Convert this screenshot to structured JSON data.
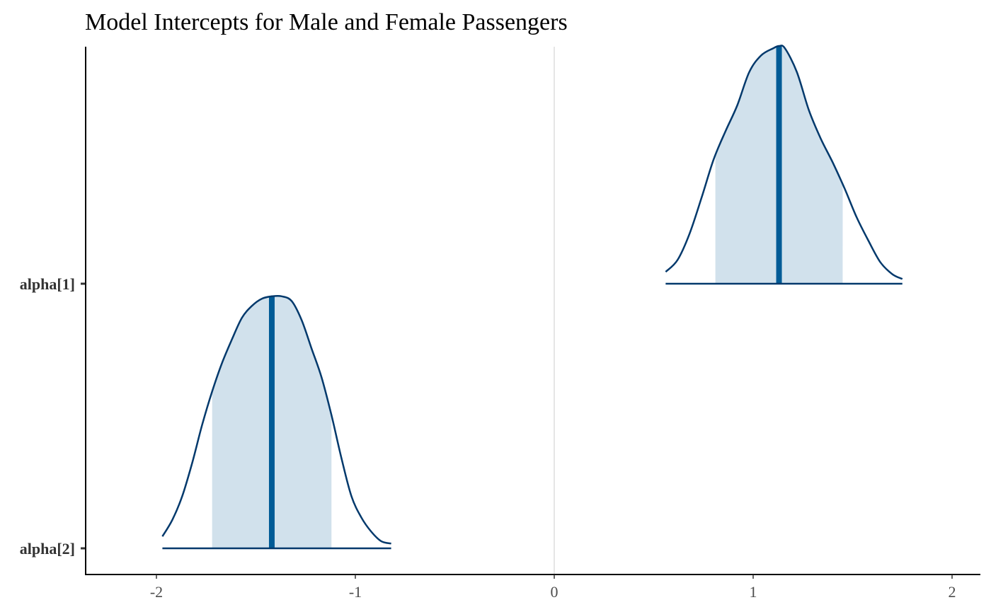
{
  "chart_data": {
    "type": "area",
    "subtype": "ridgeline-density",
    "title": "Model Intercepts for Male and Female Passengers",
    "xlabel": "",
    "ylabel": "",
    "xlim": [
      -2.3,
      2.1
    ],
    "x_ticks": [
      -2,
      -1,
      0,
      1,
      2
    ],
    "x_tick_labels": [
      "-2",
      "-1",
      "0",
      "1",
      "2"
    ],
    "reference_line_x": 0,
    "grid": false,
    "legend": "none",
    "colors": {
      "outline": "#03396c",
      "interval_fill": "#d1e1ec",
      "point_line": "#005b96",
      "reference_line": "#e6e6e6",
      "axis": "#000000"
    },
    "series": [
      {
        "name": "alpha[1]",
        "median": 1.13,
        "interval_low": 0.81,
        "interval_high": 1.45,
        "x_min": 0.56,
        "x_max": 1.75,
        "density_x": [
          0.56,
          0.62,
          0.68,
          0.74,
          0.8,
          0.86,
          0.92,
          0.98,
          1.04,
          1.1,
          1.13,
          1.16,
          1.22,
          1.28,
          1.34,
          1.4,
          1.46,
          1.52,
          1.58,
          1.64,
          1.7,
          1.75
        ],
        "density_y": [
          0.05,
          0.1,
          0.21,
          0.36,
          0.52,
          0.64,
          0.75,
          0.89,
          0.96,
          0.99,
          1.0,
          0.99,
          0.89,
          0.73,
          0.61,
          0.51,
          0.4,
          0.28,
          0.18,
          0.09,
          0.04,
          0.02
        ]
      },
      {
        "name": "alpha[2]",
        "median": -1.42,
        "interval_low": -1.72,
        "interval_high": -1.12,
        "x_min": -1.97,
        "x_max": -0.82,
        "density_x": [
          -1.97,
          -1.92,
          -1.87,
          -1.82,
          -1.77,
          -1.72,
          -1.67,
          -1.62,
          -1.57,
          -1.52,
          -1.47,
          -1.42,
          -1.37,
          -1.32,
          -1.27,
          -1.22,
          -1.17,
          -1.12,
          -1.07,
          -1.02,
          -0.97,
          -0.92,
          -0.87,
          -0.82
        ],
        "density_y": [
          0.05,
          0.12,
          0.22,
          0.36,
          0.52,
          0.66,
          0.78,
          0.88,
          0.97,
          1.02,
          1.05,
          1.06,
          1.06,
          1.04,
          0.96,
          0.84,
          0.72,
          0.56,
          0.38,
          0.22,
          0.13,
          0.07,
          0.03,
          0.02
        ]
      }
    ]
  }
}
